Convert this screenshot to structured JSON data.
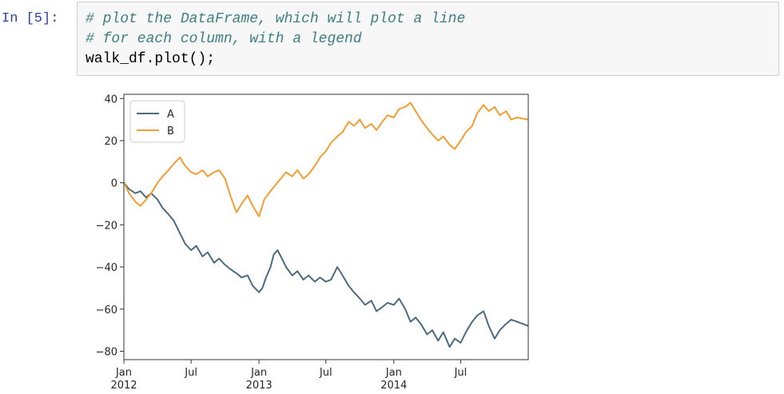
{
  "notebook": {
    "prompt": "In [5]:",
    "code_lines": [
      "# plot the DataFrame, which will plot a line",
      "# for each column, with a legend",
      "walk_df.plot();"
    ]
  },
  "colors": {
    "series_a": "#4d6b7d",
    "series_b": "#f39d37",
    "axis": "#333333",
    "code_comment": "#408080",
    "prompt": "#303f9f"
  },
  "chart_data": {
    "type": "line",
    "title": "",
    "xlabel": "",
    "ylabel": "",
    "ylim": [
      -84,
      42
    ],
    "yticks": [
      40,
      20,
      0,
      -20,
      -40,
      -60,
      -80
    ],
    "ytick_labels": [
      "40",
      "20",
      "0",
      "−20",
      "−40",
      "−60",
      "−80"
    ],
    "xlim": [
      "2012-01-01",
      "2014-12-31"
    ],
    "xticks": [
      {
        "date": "2012-01-01",
        "label": "Jan",
        "sub": "2012"
      },
      {
        "date": "2012-07-01",
        "label": "Jul",
        "sub": ""
      },
      {
        "date": "2013-01-01",
        "label": "Jan",
        "sub": "2013"
      },
      {
        "date": "2013-07-01",
        "label": "Jul",
        "sub": ""
      },
      {
        "date": "2014-01-01",
        "label": "Jan",
        "sub": "2014"
      },
      {
        "date": "2014-07-01",
        "label": "Jul",
        "sub": ""
      }
    ],
    "legend": {
      "position": "upper-left",
      "entries": [
        "A",
        "B"
      ]
    },
    "grid": false,
    "series": [
      {
        "name": "A",
        "points": [
          {
            "x": "2012-01-01",
            "y": 0
          },
          {
            "x": "2012-01-15",
            "y": -3
          },
          {
            "x": "2012-02-01",
            "y": -5
          },
          {
            "x": "2012-02-15",
            "y": -4
          },
          {
            "x": "2012-03-01",
            "y": -7
          },
          {
            "x": "2012-03-15",
            "y": -5
          },
          {
            "x": "2012-04-01",
            "y": -8
          },
          {
            "x": "2012-04-15",
            "y": -12
          },
          {
            "x": "2012-05-01",
            "y": -15
          },
          {
            "x": "2012-05-15",
            "y": -18
          },
          {
            "x": "2012-06-01",
            "y": -24
          },
          {
            "x": "2012-06-15",
            "y": -29
          },
          {
            "x": "2012-07-01",
            "y": -32
          },
          {
            "x": "2012-07-15",
            "y": -30
          },
          {
            "x": "2012-08-01",
            "y": -35
          },
          {
            "x": "2012-08-15",
            "y": -33
          },
          {
            "x": "2012-09-01",
            "y": -38
          },
          {
            "x": "2012-09-15",
            "y": -36
          },
          {
            "x": "2012-10-01",
            "y": -39
          },
          {
            "x": "2012-10-15",
            "y": -41
          },
          {
            "x": "2012-11-01",
            "y": -43
          },
          {
            "x": "2012-11-15",
            "y": -45
          },
          {
            "x": "2012-12-01",
            "y": -44
          },
          {
            "x": "2012-12-15",
            "y": -49
          },
          {
            "x": "2013-01-01",
            "y": -52
          },
          {
            "x": "2013-01-10",
            "y": -50
          },
          {
            "x": "2013-01-20",
            "y": -45
          },
          {
            "x": "2013-02-01",
            "y": -40
          },
          {
            "x": "2013-02-10",
            "y": -34
          },
          {
            "x": "2013-02-20",
            "y": -32
          },
          {
            "x": "2013-03-01",
            "y": -35
          },
          {
            "x": "2013-03-15",
            "y": -40
          },
          {
            "x": "2013-04-01",
            "y": -44
          },
          {
            "x": "2013-04-15",
            "y": -42
          },
          {
            "x": "2013-05-01",
            "y": -46
          },
          {
            "x": "2013-05-15",
            "y": -44
          },
          {
            "x": "2013-06-01",
            "y": -47
          },
          {
            "x": "2013-06-15",
            "y": -45
          },
          {
            "x": "2013-07-01",
            "y": -47
          },
          {
            "x": "2013-07-15",
            "y": -46
          },
          {
            "x": "2013-08-01",
            "y": -40
          },
          {
            "x": "2013-08-15",
            "y": -44
          },
          {
            "x": "2013-09-01",
            "y": -49
          },
          {
            "x": "2013-09-15",
            "y": -52
          },
          {
            "x": "2013-10-01",
            "y": -55
          },
          {
            "x": "2013-10-15",
            "y": -58
          },
          {
            "x": "2013-11-01",
            "y": -56
          },
          {
            "x": "2013-11-15",
            "y": -61
          },
          {
            "x": "2013-12-01",
            "y": -59
          },
          {
            "x": "2013-12-15",
            "y": -57
          },
          {
            "x": "2014-01-01",
            "y": -58
          },
          {
            "x": "2014-01-15",
            "y": -55
          },
          {
            "x": "2014-02-01",
            "y": -60
          },
          {
            "x": "2014-02-15",
            "y": -66
          },
          {
            "x": "2014-03-01",
            "y": -64
          },
          {
            "x": "2014-03-15",
            "y": -67
          },
          {
            "x": "2014-04-01",
            "y": -72
          },
          {
            "x": "2014-04-15",
            "y": -70
          },
          {
            "x": "2014-05-01",
            "y": -75
          },
          {
            "x": "2014-05-15",
            "y": -71
          },
          {
            "x": "2014-06-01",
            "y": -78
          },
          {
            "x": "2014-06-15",
            "y": -74
          },
          {
            "x": "2014-07-01",
            "y": -76
          },
          {
            "x": "2014-07-15",
            "y": -71
          },
          {
            "x": "2014-08-01",
            "y": -66
          },
          {
            "x": "2014-08-15",
            "y": -63
          },
          {
            "x": "2014-09-01",
            "y": -61
          },
          {
            "x": "2014-09-15",
            "y": -68
          },
          {
            "x": "2014-10-01",
            "y": -74
          },
          {
            "x": "2014-10-15",
            "y": -70
          },
          {
            "x": "2014-11-01",
            "y": -67
          },
          {
            "x": "2014-11-15",
            "y": -65
          },
          {
            "x": "2014-12-01",
            "y": -66
          },
          {
            "x": "2014-12-31",
            "y": -68
          }
        ]
      },
      {
        "name": "B",
        "points": [
          {
            "x": "2012-01-01",
            "y": 0
          },
          {
            "x": "2012-01-15",
            "y": -5
          },
          {
            "x": "2012-02-01",
            "y": -9
          },
          {
            "x": "2012-02-15",
            "y": -11
          },
          {
            "x": "2012-03-01",
            "y": -8
          },
          {
            "x": "2012-03-15",
            "y": -5
          },
          {
            "x": "2012-04-01",
            "y": 0
          },
          {
            "x": "2012-04-15",
            "y": 3
          },
          {
            "x": "2012-05-01",
            "y": 6
          },
          {
            "x": "2012-05-15",
            "y": 9
          },
          {
            "x": "2012-06-01",
            "y": 12
          },
          {
            "x": "2012-06-15",
            "y": 8
          },
          {
            "x": "2012-07-01",
            "y": 5
          },
          {
            "x": "2012-07-15",
            "y": 4
          },
          {
            "x": "2012-08-01",
            "y": 6
          },
          {
            "x": "2012-08-15",
            "y": 3
          },
          {
            "x": "2012-09-01",
            "y": 5
          },
          {
            "x": "2012-09-15",
            "y": 6
          },
          {
            "x": "2012-10-01",
            "y": 2
          },
          {
            "x": "2012-10-15",
            "y": -6
          },
          {
            "x": "2012-11-01",
            "y": -14
          },
          {
            "x": "2012-11-15",
            "y": -10
          },
          {
            "x": "2012-12-01",
            "y": -6
          },
          {
            "x": "2012-12-15",
            "y": -11
          },
          {
            "x": "2013-01-01",
            "y": -16
          },
          {
            "x": "2013-01-15",
            "y": -8
          },
          {
            "x": "2013-02-01",
            "y": -4
          },
          {
            "x": "2013-02-15",
            "y": -1
          },
          {
            "x": "2013-03-01",
            "y": 2
          },
          {
            "x": "2013-03-15",
            "y": 5
          },
          {
            "x": "2013-04-01",
            "y": 3
          },
          {
            "x": "2013-04-15",
            "y": 6
          },
          {
            "x": "2013-05-01",
            "y": 2
          },
          {
            "x": "2013-05-15",
            "y": 4
          },
          {
            "x": "2013-06-01",
            "y": 8
          },
          {
            "x": "2013-06-15",
            "y": 12
          },
          {
            "x": "2013-07-01",
            "y": 15
          },
          {
            "x": "2013-07-15",
            "y": 19
          },
          {
            "x": "2013-08-01",
            "y": 22
          },
          {
            "x": "2013-08-15",
            "y": 24
          },
          {
            "x": "2013-09-01",
            "y": 29
          },
          {
            "x": "2013-09-15",
            "y": 27
          },
          {
            "x": "2013-10-01",
            "y": 30
          },
          {
            "x": "2013-10-15",
            "y": 26
          },
          {
            "x": "2013-11-01",
            "y": 28
          },
          {
            "x": "2013-11-15",
            "y": 25
          },
          {
            "x": "2013-12-01",
            "y": 29
          },
          {
            "x": "2013-12-15",
            "y": 32
          },
          {
            "x": "2014-01-01",
            "y": 31
          },
          {
            "x": "2014-01-15",
            "y": 35
          },
          {
            "x": "2014-02-01",
            "y": 36
          },
          {
            "x": "2014-02-15",
            "y": 38
          },
          {
            "x": "2014-03-01",
            "y": 34
          },
          {
            "x": "2014-03-15",
            "y": 30
          },
          {
            "x": "2014-04-01",
            "y": 26
          },
          {
            "x": "2014-04-15",
            "y": 23
          },
          {
            "x": "2014-05-01",
            "y": 20
          },
          {
            "x": "2014-05-15",
            "y": 22
          },
          {
            "x": "2014-06-01",
            "y": 18
          },
          {
            "x": "2014-06-15",
            "y": 16
          },
          {
            "x": "2014-07-01",
            "y": 20
          },
          {
            "x": "2014-07-15",
            "y": 24
          },
          {
            "x": "2014-08-01",
            "y": 27
          },
          {
            "x": "2014-08-15",
            "y": 33
          },
          {
            "x": "2014-09-01",
            "y": 37
          },
          {
            "x": "2014-09-15",
            "y": 34
          },
          {
            "x": "2014-10-01",
            "y": 36
          },
          {
            "x": "2014-10-15",
            "y": 32
          },
          {
            "x": "2014-11-01",
            "y": 34
          },
          {
            "x": "2014-11-15",
            "y": 30
          },
          {
            "x": "2014-12-01",
            "y": 31
          },
          {
            "x": "2014-12-31",
            "y": 30
          }
        ]
      }
    ]
  }
}
